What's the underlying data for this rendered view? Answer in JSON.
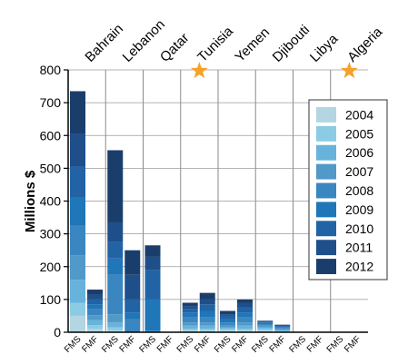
{
  "chart_data": {
    "type": "bar",
    "stacked": true,
    "ylabel": "Millions $",
    "ylim": [
      0,
      800
    ],
    "yticks": [
      0,
      100,
      200,
      300,
      400,
      500,
      600,
      700,
      800
    ],
    "countries": [
      "Bahrain",
      "Lebanon",
      "Qatar",
      "Tunisia",
      "Yemen",
      "Djibouti",
      "Libya",
      "Algeria"
    ],
    "starred_countries": [
      "Tunisia",
      "Algeria"
    ],
    "categories": [
      "FMS",
      "FMF"
    ],
    "legend_position": "right",
    "series_names": [
      "2004",
      "2005",
      "2006",
      "2007",
      "2008",
      "2009",
      "2010",
      "2011",
      "2012"
    ],
    "series_colors": [
      "#b3d6e2",
      "#8ccbe4",
      "#67b3dc",
      "#5199c8",
      "#3a86c0",
      "#1f76b8",
      "#2163a5",
      "#1e4f8a",
      "#1a3e6c"
    ],
    "star_color": "#f5a22a",
    "bars": [
      {
        "country": "Bahrain",
        "category": "FMS",
        "values": [
          50,
          40,
          70,
          75,
          90,
          85,
          95,
          100,
          130
        ]
      },
      {
        "country": "Bahrain",
        "category": "FMF",
        "values": [
          10,
          12,
          15,
          15,
          18,
          15,
          15,
          15,
          15
        ]
      },
      {
        "country": "Lebanon",
        "category": "FMS",
        "values": [
          5,
          10,
          15,
          25,
          120,
          50,
          50,
          60,
          220
        ]
      },
      {
        "country": "Lebanon",
        "category": "FMF",
        "values": [
          0,
          0,
          0,
          0,
          40,
          20,
          40,
          75,
          75
        ]
      },
      {
        "country": "Qatar",
        "category": "FMS",
        "values": [
          0,
          0,
          0,
          0,
          5,
          95,
          90,
          40,
          35
        ]
      },
      {
        "country": "Qatar",
        "category": "FMF",
        "values": [
          0,
          0,
          0,
          0,
          0,
          0,
          0,
          0,
          0
        ]
      },
      {
        "country": "Tunisia",
        "category": "FMS",
        "values": [
          5,
          5,
          10,
          10,
          15,
          15,
          10,
          10,
          10
        ]
      },
      {
        "country": "Tunisia",
        "category": "FMF",
        "values": [
          5,
          5,
          10,
          10,
          15,
          20,
          20,
          15,
          20
        ]
      },
      {
        "country": "Yemen",
        "category": "FMS",
        "values": [
          5,
          5,
          5,
          5,
          10,
          10,
          10,
          5,
          10
        ]
      },
      {
        "country": "Yemen",
        "category": "FMF",
        "values": [
          5,
          5,
          10,
          10,
          15,
          15,
          15,
          15,
          10
        ]
      },
      {
        "country": "Djibouti",
        "category": "FMS",
        "values": [
          5,
          5,
          5,
          5,
          5,
          5,
          3,
          0,
          2
        ]
      },
      {
        "country": "Djibouti",
        "category": "FMF",
        "values": [
          2,
          2,
          3,
          3,
          3,
          3,
          3,
          2,
          2
        ]
      },
      {
        "country": "Libya",
        "category": "FMS",
        "values": [
          0,
          0,
          0,
          0,
          0,
          0,
          0,
          0,
          0
        ]
      },
      {
        "country": "Libya",
        "category": "FMF",
        "values": [
          0,
          0,
          0,
          0,
          0,
          0,
          0,
          0,
          0
        ]
      },
      {
        "country": "Algeria",
        "category": "FMS",
        "values": [
          0,
          0,
          0,
          0,
          0,
          0,
          0,
          0,
          0
        ]
      },
      {
        "country": "Algeria",
        "category": "FMF",
        "values": [
          0,
          0,
          0,
          0,
          0,
          0,
          0,
          0,
          0
        ]
      }
    ]
  }
}
